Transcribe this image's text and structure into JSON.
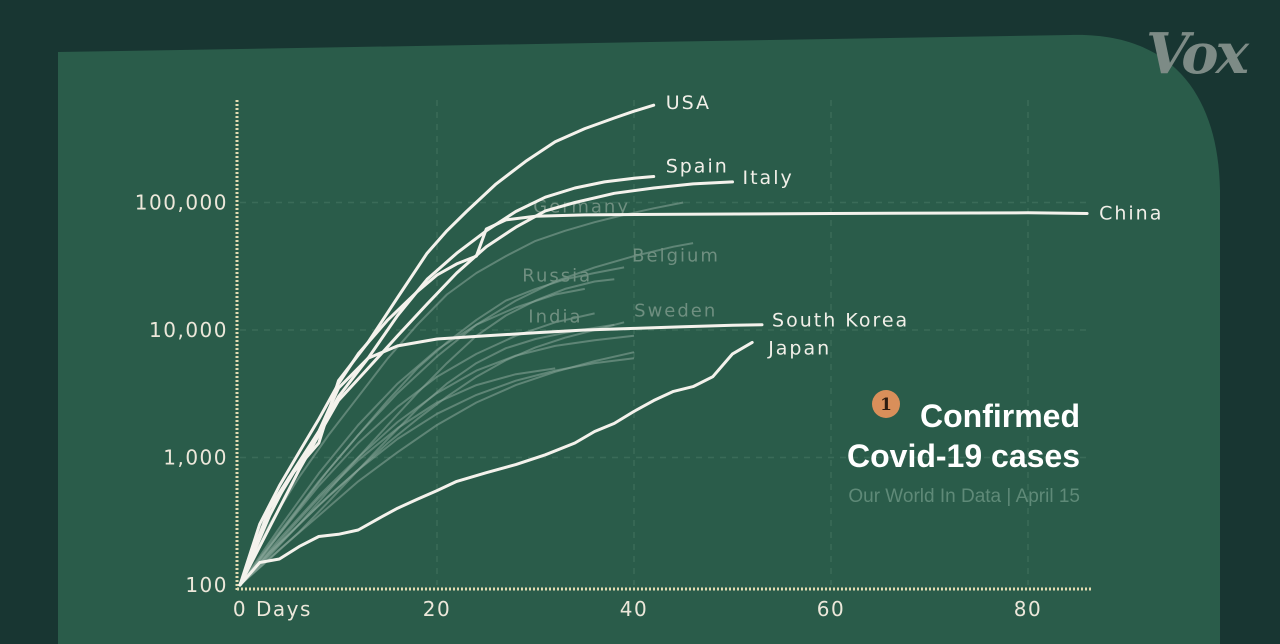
{
  "brand": {
    "logo": "Vox"
  },
  "badge": {
    "number": "1"
  },
  "title": {
    "line1": "Confirmed",
    "line2": "Covid-19 cases"
  },
  "source": "Our World In Data | April 15",
  "chart_data": {
    "type": "line",
    "title": "Confirmed Covid-19 cases",
    "xlabel": "Days",
    "ylabel": "",
    "x_scale": "linear",
    "y_scale": "log",
    "xlim": [
      0,
      86
    ],
    "ylim": [
      100,
      1000000
    ],
    "x_ticks": [
      {
        "value": 0,
        "label": "0"
      },
      {
        "value": 20,
        "label": "20"
      },
      {
        "value": 40,
        "label": "40"
      },
      {
        "value": 60,
        "label": "60"
      },
      {
        "value": 80,
        "label": "80"
      }
    ],
    "x_unit_label": "Days",
    "y_ticks": [
      {
        "value": 100,
        "label": "100"
      },
      {
        "value": 1000,
        "label": "1,000"
      },
      {
        "value": 10000,
        "label": "10,000"
      },
      {
        "value": 100000,
        "label": "100,000"
      }
    ],
    "grid": true,
    "legend": "labels at line ends",
    "series": [
      {
        "name": "USA",
        "highlight": true,
        "x": [
          0,
          3,
          5,
          8,
          10,
          13,
          16,
          19,
          21,
          23,
          26,
          29,
          32,
          35,
          38,
          40,
          42
        ],
        "y": [
          100,
          400,
          700,
          1300,
          4000,
          8000,
          18000,
          40000,
          60000,
          85000,
          140000,
          210000,
          300000,
          380000,
          460000,
          520000,
          580000
        ]
      },
      {
        "name": "Spain",
        "highlight": true,
        "x": [
          0,
          3,
          5,
          8,
          10,
          13,
          16,
          19,
          22,
          25,
          28,
          31,
          34,
          37,
          40,
          42
        ],
        "y": [
          100,
          350,
          700,
          1600,
          3000,
          6000,
          13000,
          25000,
          40000,
          60000,
          85000,
          110000,
          130000,
          145000,
          155000,
          160000
        ]
      },
      {
        "name": "Italy",
        "highlight": true,
        "x": [
          0,
          2,
          4,
          6,
          8,
          10,
          13,
          16,
          19,
          22,
          25,
          28,
          31,
          34,
          38,
          42,
          46,
          50
        ],
        "y": [
          100,
          200,
          400,
          800,
          1500,
          2800,
          5000,
          9000,
          16000,
          28000,
          45000,
          64000,
          86000,
          100000,
          118000,
          130000,
          140000,
          145000
        ]
      },
      {
        "name": "China",
        "highlight": true,
        "x": [
          0,
          2,
          4,
          6,
          8,
          10,
          12,
          15,
          18,
          20,
          22,
          24,
          25,
          27,
          30,
          35,
          45,
          60,
          80,
          86
        ],
        "y": [
          100,
          300,
          600,
          1100,
          2000,
          3800,
          6500,
          12000,
          20000,
          27000,
          33000,
          38000,
          62000,
          73000,
          78000,
          80000,
          81000,
          82000,
          83000,
          82000
        ]
      },
      {
        "name": "South Korea",
        "highlight": true,
        "x": [
          0,
          2,
          4,
          6,
          8,
          10,
          13,
          16,
          20,
          25,
          30,
          35,
          40,
          45,
          50,
          53
        ],
        "y": [
          100,
          250,
          500,
          900,
          1600,
          3500,
          6000,
          7500,
          8500,
          9000,
          9500,
          10000,
          10300,
          10600,
          10900,
          11000
        ]
      },
      {
        "name": "Japan",
        "highlight": true,
        "x": [
          0,
          2,
          4,
          6,
          8,
          10,
          12,
          14,
          16,
          18,
          20,
          22,
          25,
          28,
          31,
          34,
          36,
          38,
          40,
          42,
          44,
          46,
          48,
          50,
          52
        ],
        "y": [
          100,
          150,
          160,
          200,
          240,
          250,
          270,
          330,
          400,
          470,
          550,
          650,
          760,
          880,
          1050,
          1300,
          1600,
          1850,
          2300,
          2800,
          3300,
          3600,
          4300,
          6500,
          8000
        ]
      },
      {
        "name": "Belgium",
        "highlight": false,
        "x": [
          0,
          3,
          6,
          9,
          12,
          15,
          18,
          21,
          24,
          27,
          30,
          33,
          36,
          39
        ],
        "y": [
          100,
          200,
          400,
          800,
          1500,
          2800,
          5000,
          8000,
          12000,
          17000,
          21000,
          25000,
          28000,
          31000
        ]
      },
      {
        "name": "Russia",
        "highlight": false,
        "x": [
          0,
          3,
          6,
          9,
          12,
          15,
          18,
          21,
          24,
          27,
          30,
          33,
          36,
          38
        ],
        "y": [
          100,
          170,
          300,
          550,
          1000,
          1800,
          3200,
          5500,
          9000,
          13000,
          17000,
          21000,
          24000,
          25000
        ]
      },
      {
        "name": "India",
        "highlight": false,
        "x": [
          0,
          3,
          6,
          9,
          12,
          15,
          18,
          21,
          24,
          27,
          30,
          33,
          36,
          38
        ],
        "y": [
          100,
          160,
          260,
          450,
          800,
          1400,
          2400,
          3800,
          5500,
          7200,
          8500,
          9500,
          10400,
          11000
        ]
      },
      {
        "name": "Sweden",
        "highlight": false,
        "x": [
          0,
          3,
          6,
          9,
          12,
          15,
          18,
          21,
          24,
          27,
          30,
          33,
          36,
          39
        ],
        "y": [
          100,
          180,
          300,
          500,
          800,
          1300,
          2000,
          3000,
          4300,
          5800,
          7300,
          8700,
          10000,
          11500
        ]
      },
      {
        "name": "Germany",
        "highlight": false,
        "x": [
          0,
          3,
          6,
          9,
          12,
          15,
          18,
          21,
          24,
          27,
          30,
          33,
          36,
          39,
          42,
          45
        ],
        "y": [
          100,
          300,
          700,
          1500,
          3000,
          6000,
          11000,
          19000,
          28000,
          38000,
          50000,
          60000,
          70000,
          80000,
          90000,
          100000
        ]
      },
      {
        "name": "",
        "highlight": false,
        "x": [
          0,
          4,
          8,
          12,
          16,
          20,
          24,
          28,
          32,
          36,
          40
        ],
        "y": [
          100,
          230,
          500,
          1000,
          1900,
          3200,
          4800,
          6300,
          7500,
          8300,
          9000
        ]
      },
      {
        "name": "",
        "highlight": false,
        "x": [
          0,
          4,
          8,
          12,
          16,
          20,
          24,
          28,
          32,
          36,
          40
        ],
        "y": [
          100,
          210,
          420,
          800,
          1400,
          2200,
          3100,
          4000,
          4800,
          5500,
          6000
        ]
      },
      {
        "name": "",
        "highlight": false,
        "x": [
          0,
          4,
          8,
          12,
          16,
          20,
          24,
          28,
          32,
          36
        ],
        "y": [
          100,
          250,
          600,
          1300,
          2500,
          4300,
          6500,
          9000,
          11500,
          13500
        ]
      },
      {
        "name": "",
        "highlight": false,
        "x": [
          0,
          4,
          8,
          12,
          16,
          20,
          24,
          28,
          32,
          36,
          40
        ],
        "y": [
          100,
          190,
          350,
          650,
          1100,
          1800,
          2700,
          3700,
          4700,
          5700,
          6700
        ]
      },
      {
        "name": "",
        "highlight": false,
        "x": [
          0,
          4,
          8,
          12,
          16,
          20,
          24,
          28,
          32,
          35
        ],
        "y": [
          100,
          280,
          750,
          1800,
          3800,
          7000,
          11000,
          15000,
          19000,
          21000
        ]
      },
      {
        "name": "",
        "highlight": false,
        "x": [
          0,
          4,
          8,
          12,
          16,
          20,
          24,
          28,
          32,
          36,
          40,
          44,
          46
        ],
        "y": [
          100,
          260,
          650,
          1500,
          3200,
          6200,
          11000,
          17000,
          24000,
          31000,
          38000,
          45000,
          48000
        ]
      },
      {
        "name": "",
        "highlight": false,
        "x": [
          0,
          4,
          8,
          12,
          16,
          20,
          24,
          28,
          32
        ],
        "y": [
          100,
          220,
          480,
          950,
          1700,
          2700,
          3700,
          4500,
          5000
        ]
      }
    ]
  }
}
